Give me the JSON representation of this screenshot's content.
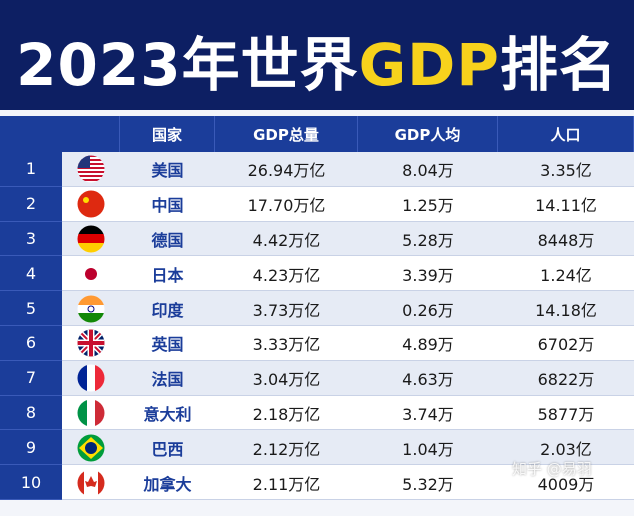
{
  "header": {
    "title": {
      "prefix": "2023年世界",
      "highlight": "GDP",
      "suffix": "排名"
    }
  },
  "table": {
    "columns": [
      "国家",
      "GDP总量",
      "GDP人均",
      "人口"
    ],
    "rows": [
      [
        "1",
        "美国",
        "26.94万亿",
        "8.04万",
        "3.35亿"
      ],
      [
        "2",
        "中国",
        "17.70万亿",
        "1.25万",
        "14.11亿"
      ],
      [
        "3",
        "德国",
        "4.42万亿",
        "5.28万",
        "8448万"
      ],
      [
        "4",
        "日本",
        "4.23万亿",
        "3.39万",
        "1.24亿"
      ],
      [
        "5",
        "印度",
        "3.73万亿",
        "0.26万",
        "14.18亿"
      ],
      [
        "6",
        "英国",
        "3.33万亿",
        "4.89万",
        "6702万"
      ],
      [
        "7",
        "法国",
        "3.04万亿",
        "4.63万",
        "6822万"
      ],
      [
        "8",
        "意大利",
        "2.18万亿",
        "3.74万",
        "5877万"
      ],
      [
        "9",
        "巴西",
        "2.12万亿",
        "1.04万",
        "2.03亿"
      ],
      [
        "10",
        "加拿大",
        "2.11万亿",
        "5.32万",
        "4009万"
      ]
    ]
  },
  "watermark": "知乎 @易羽"
}
